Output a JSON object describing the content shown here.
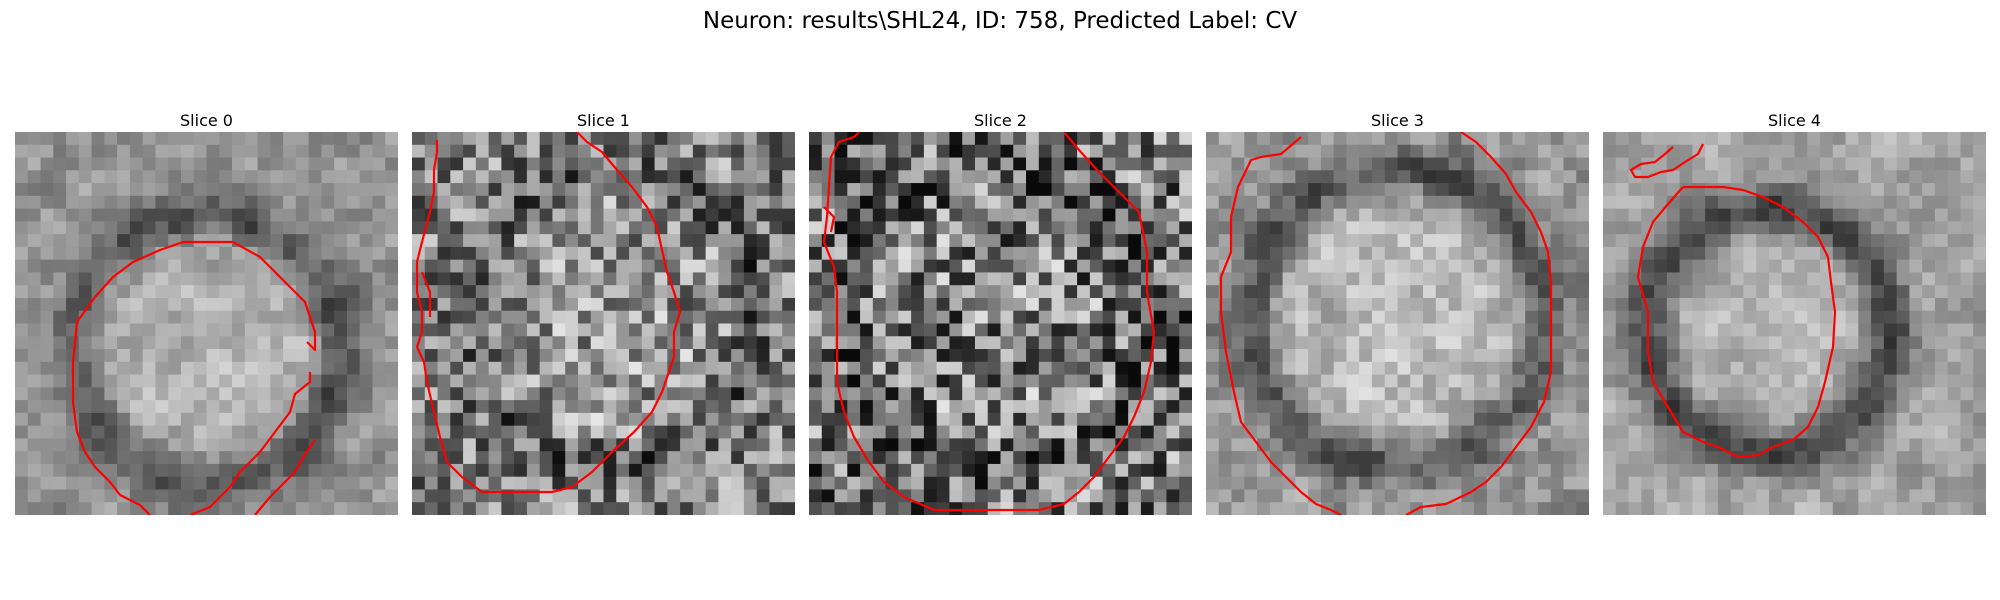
{
  "figure": {
    "title": "Neuron: results\\SHL24, ID: 758, Predicted Label: CV"
  },
  "colors": {
    "contour": "#ff0000",
    "background": "#ffffff"
  },
  "slices": [
    {
      "label": "Slice 0"
    },
    {
      "label": "Slice 1"
    },
    {
      "label": "Slice 2"
    },
    {
      "label": "Slice 3"
    },
    {
      "label": "Slice 4"
    }
  ]
}
